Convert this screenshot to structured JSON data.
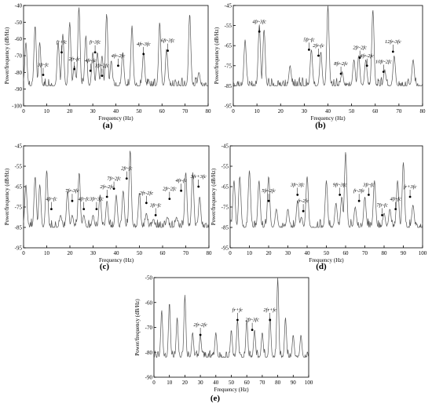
{
  "chart_data": [
    {
      "type": "line",
      "panel_label": "(a)",
      "xlabel": "Frequency (Hz)",
      "ylabel": "Power/frequency (dB/Hz)",
      "xlim": [
        0,
        80
      ],
      "ylim": [
        -100,
        -40
      ],
      "xticks": [
        0,
        10,
        20,
        30,
        40,
        50,
        60,
        70,
        80
      ],
      "yticks": [
        -100,
        -90,
        -80,
        -70,
        -60,
        -50,
        -40
      ],
      "peaks": [
        {
          "x": 1,
          "y": -62
        },
        {
          "x": 5,
          "y": -52
        },
        {
          "x": 7,
          "y": -62
        },
        {
          "x": 15,
          "y": -62
        },
        {
          "x": 17,
          "y": -57
        },
        {
          "x": 20,
          "y": -50
        },
        {
          "x": 22,
          "y": -76
        },
        {
          "x": 24,
          "y": -41
        },
        {
          "x": 27,
          "y": -58
        },
        {
          "x": 30,
          "y": -68
        },
        {
          "x": 32,
          "y": -68
        },
        {
          "x": 34,
          "y": -70
        },
        {
          "x": 36,
          "y": -45
        },
        {
          "x": 38,
          "y": -73
        },
        {
          "x": 43,
          "y": -68
        },
        {
          "x": 47,
          "y": -52
        },
        {
          "x": 52,
          "y": -68
        },
        {
          "x": 59,
          "y": -50
        },
        {
          "x": 62,
          "y": -66
        },
        {
          "x": 72,
          "y": -45
        },
        {
          "x": 76,
          "y": -80
        }
      ],
      "annotations": [
        {
          "text": "3fr-fc",
          "x": 8.5,
          "y": -81.5
        },
        {
          "text": "fr+fc",
          "x": 16.5,
          "y": -68
        },
        {
          "text": "2fr-fc",
          "x": 22,
          "y": -78
        },
        {
          "text": "fr-3fc",
          "x": 31,
          "y": -68
        },
        {
          "text": "4fr-fc",
          "x": 29,
          "y": -79
        },
        {
          "text": "3fr-2fc",
          "x": 34,
          "y": -82
        },
        {
          "text": "4fr-2fc",
          "x": 41,
          "y": -76
        },
        {
          "text": "4fr-3fc",
          "x": 52,
          "y": -69
        },
        {
          "text": "6fr-3fc",
          "x": 62.5,
          "y": -67
        }
      ]
    },
    {
      "type": "line",
      "panel_label": "(b)",
      "xlabel": "Frequency (Hz)",
      "ylabel": "Power/frequency (dB/Hz)",
      "xlim": [
        0,
        80
      ],
      "ylim": [
        -95,
        -45
      ],
      "xticks": [
        0,
        10,
        20,
        30,
        40,
        50,
        60,
        70,
        80
      ],
      "yticks": [
        -95,
        -85,
        -75,
        -65,
        -55,
        -45
      ],
      "peaks": [
        {
          "x": 5,
          "y": -62
        },
        {
          "x": 11,
          "y": -55
        },
        {
          "x": 13,
          "y": -57
        },
        {
          "x": 24,
          "y": -75
        },
        {
          "x": 33,
          "y": -67
        },
        {
          "x": 37,
          "y": -68
        },
        {
          "x": 40,
          "y": -45
        },
        {
          "x": 46,
          "y": -78
        },
        {
          "x": 51,
          "y": -72
        },
        {
          "x": 53,
          "y": -70
        },
        {
          "x": 56,
          "y": -72
        },
        {
          "x": 59,
          "y": -47
        },
        {
          "x": 64,
          "y": -77
        },
        {
          "x": 68,
          "y": -70
        },
        {
          "x": 76,
          "y": -72
        }
      ],
      "annotations": [
        {
          "text": "4fr-3fc",
          "x": 11,
          "y": -58
        },
        {
          "text": "5fr-fc",
          "x": 32,
          "y": -67
        },
        {
          "text": "2fr-fc",
          "x": 36,
          "y": -70
        },
        {
          "text": "8fr-2fc",
          "x": 45.5,
          "y": -79
        },
        {
          "text": "2fr-2fc",
          "x": 53.5,
          "y": -71
        },
        {
          "text": "4fr-2fc",
          "x": 56.5,
          "y": -75
        },
        {
          "text": "10fr-2fc",
          "x": 63.5,
          "y": -78
        },
        {
          "text": "12fr-3fc",
          "x": 67.5,
          "y": -68
        }
      ]
    },
    {
      "type": "line",
      "panel_label": "(c)",
      "xlabel": "Frequency (Hz)",
      "ylabel": "Power/frequency (dB/Hz)",
      "xlim": [
        0,
        80
      ],
      "ylim": [
        -95,
        -45
      ],
      "xticks": [
        0,
        10,
        20,
        30,
        40,
        50,
        60,
        70,
        80
      ],
      "yticks": [
        -95,
        -85,
        -75,
        -65,
        -55,
        -45
      ],
      "peaks": [
        {
          "x": 1,
          "y": -64
        },
        {
          "x": 5,
          "y": -60
        },
        {
          "x": 7,
          "y": -64
        },
        {
          "x": 10,
          "y": -57
        },
        {
          "x": 16,
          "y": -79
        },
        {
          "x": 19,
          "y": -67
        },
        {
          "x": 21,
          "y": -79
        },
        {
          "x": 24,
          "y": -58
        },
        {
          "x": 26,
          "y": -79
        },
        {
          "x": 30,
          "y": -79
        },
        {
          "x": 33,
          "y": -69
        },
        {
          "x": 36,
          "y": -72
        },
        {
          "x": 40,
          "y": -69
        },
        {
          "x": 43,
          "y": -67
        },
        {
          "x": 46,
          "y": -47
        },
        {
          "x": 50,
          "y": -68
        },
        {
          "x": 53,
          "y": -78
        },
        {
          "x": 56,
          "y": -81
        },
        {
          "x": 62,
          "y": -80
        },
        {
          "x": 66,
          "y": -80
        },
        {
          "x": 70,
          "y": -58
        },
        {
          "x": 73,
          "y": -58
        },
        {
          "x": 76,
          "y": -70
        }
      ],
      "annotations": [
        {
          "text": "4fr-fc",
          "x": 12,
          "y": -76
        },
        {
          "text": "7fr-3fc",
          "x": 21,
          "y": -72
        },
        {
          "text": "4fr-fc",
          "x": 26,
          "y": -76
        },
        {
          "text": "3fr-3fc",
          "x": 31.5,
          "y": -76
        },
        {
          "text": "2fr-2fc",
          "x": 36,
          "y": -70
        },
        {
          "text": "7fr-2fc",
          "x": 39,
          "y": -66
        },
        {
          "text": "2fr-fc",
          "x": 44.5,
          "y": -61
        },
        {
          "text": "2fr-2fc",
          "x": 53,
          "y": -73
        },
        {
          "text": "3fr-fc",
          "x": 57,
          "y": -79
        },
        {
          "text": "2fr-2fc",
          "x": 63,
          "y": -71
        },
        {
          "text": "4fr-fc",
          "x": 68,
          "y": -67
        },
        {
          "text": "3fr+3fc",
          "x": 75.5,
          "y": -65
        }
      ]
    },
    {
      "type": "line",
      "panel_label": "(d)",
      "xlabel": "Frequency (Hz)",
      "ylabel": "Power/frequency (dB/Hz)",
      "xlim": [
        0,
        100
      ],
      "ylim": [
        -95,
        -45
      ],
      "xticks": [
        0,
        10,
        20,
        30,
        40,
        50,
        60,
        70,
        80,
        90,
        100
      ],
      "yticks": [
        -95,
        -85,
        -75,
        -65,
        -55,
        -45
      ],
      "peaks": [
        {
          "x": 2,
          "y": -62
        },
        {
          "x": 5,
          "y": -60
        },
        {
          "x": 10,
          "y": -57
        },
        {
          "x": 15,
          "y": -62
        },
        {
          "x": 20,
          "y": -60
        },
        {
          "x": 24,
          "y": -76
        },
        {
          "x": 30,
          "y": -76
        },
        {
          "x": 35,
          "y": -72
        },
        {
          "x": 37,
          "y": -80
        },
        {
          "x": 40,
          "y": -60
        },
        {
          "x": 50,
          "y": -62
        },
        {
          "x": 55,
          "y": -73
        },
        {
          "x": 58,
          "y": -70
        },
        {
          "x": 60,
          "y": -48
        },
        {
          "x": 65,
          "y": -75
        },
        {
          "x": 70,
          "y": -70
        },
        {
          "x": 75,
          "y": -62
        },
        {
          "x": 80,
          "y": -78
        },
        {
          "x": 83,
          "y": -76
        },
        {
          "x": 87,
          "y": -62
        },
        {
          "x": 90,
          "y": -53
        },
        {
          "x": 95,
          "y": -74
        }
      ],
      "annotations": [
        {
          "text": "5fr-2fc",
          "x": 20,
          "y": -72
        },
        {
          "text": "3fr-3fc",
          "x": 35,
          "y": -69
        },
        {
          "text": "fr-2fc",
          "x": 38,
          "y": -77
        },
        {
          "text": "9fr-3fc",
          "x": 57,
          "y": -69
        },
        {
          "text": "fr-3fc",
          "x": 67,
          "y": -72
        },
        {
          "text": "3fr-fc",
          "x": 72,
          "y": -69
        },
        {
          "text": "7fr-fc",
          "x": 79,
          "y": -79
        },
        {
          "text": "4fr-fc",
          "x": 86,
          "y": -76
        },
        {
          "text": "fr+3fc",
          "x": 93.5,
          "y": -70
        }
      ]
    },
    {
      "type": "line",
      "panel_label": "(e)",
      "xlabel": "Frequency (Hz)",
      "ylabel": "Power/frequency (dB/Hz)",
      "xlim": [
        0,
        100
      ],
      "ylim": [
        -90,
        -50
      ],
      "xticks": [
        0,
        10,
        20,
        30,
        40,
        50,
        60,
        70,
        80,
        90,
        100
      ],
      "yticks": [
        -90,
        -80,
        -70,
        -60,
        -50
      ],
      "peaks": [
        {
          "x": 5,
          "y": -63
        },
        {
          "x": 10,
          "y": -60
        },
        {
          "x": 15,
          "y": -66
        },
        {
          "x": 20,
          "y": -57
        },
        {
          "x": 25,
          "y": -72
        },
        {
          "x": 30,
          "y": -73
        },
        {
          "x": 40,
          "y": -72
        },
        {
          "x": 50,
          "y": -71
        },
        {
          "x": 54,
          "y": -67
        },
        {
          "x": 60,
          "y": -67
        },
        {
          "x": 65,
          "y": -71
        },
        {
          "x": 70,
          "y": -72
        },
        {
          "x": 75,
          "y": -66
        },
        {
          "x": 80,
          "y": -50
        },
        {
          "x": 85,
          "y": -66
        },
        {
          "x": 90,
          "y": -73
        },
        {
          "x": 95,
          "y": -73
        }
      ],
      "annotations": [
        {
          "text": "2fr-2fc",
          "x": 30,
          "y": -73
        },
        {
          "text": "fr+fc",
          "x": 54,
          "y": -67
        },
        {
          "text": "2fr-3fc",
          "x": 63.5,
          "y": -71
        },
        {
          "text": "2fr+fc",
          "x": 75,
          "y": -67
        }
      ]
    }
  ]
}
